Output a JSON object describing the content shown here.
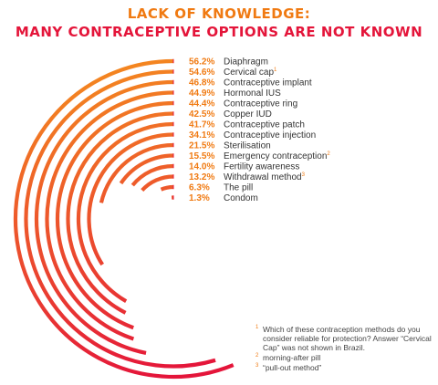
{
  "title": {
    "line1": "LACK OF KNOWLEDGE:",
    "line2": "MANY CONTRACEPTIVE OPTIONS ARE NOT KNOWN"
  },
  "colors": {
    "orange": "#f5901e",
    "red": "#e4153a",
    "title_orange": "#f07a12",
    "value_orange": "#f07a12",
    "label_text": "#333333"
  },
  "chart_data": {
    "type": "radial-bar",
    "unit": "%",
    "max": 100,
    "items": [
      {
        "label": "Diaphragm",
        "value": 56.2,
        "value_text": "56.2%",
        "footnote": ""
      },
      {
        "label": "Cervical cap",
        "value": 54.6,
        "value_text": "54.6%",
        "footnote": "1"
      },
      {
        "label": "Contraceptive implant",
        "value": 46.8,
        "value_text": "46.8%",
        "footnote": ""
      },
      {
        "label": "Hormonal IUS",
        "value": 44.9,
        "value_text": "44.9%",
        "footnote": ""
      },
      {
        "label": "Contraceptive ring",
        "value": 44.4,
        "value_text": "44.4%",
        "footnote": ""
      },
      {
        "label": "Copper IUD",
        "value": 42.5,
        "value_text": "42.5%",
        "footnote": ""
      },
      {
        "label": "Contraceptive patch",
        "value": 41.7,
        "value_text": "41.7%",
        "footnote": ""
      },
      {
        "label": "Contraceptive injection",
        "value": 34.1,
        "value_text": "34.1%",
        "footnote": ""
      },
      {
        "label": "Sterilisation",
        "value": 21.5,
        "value_text": "21.5%",
        "footnote": ""
      },
      {
        "label": "Emergency contraception",
        "value": 15.5,
        "value_text": "15.5%",
        "footnote": "2"
      },
      {
        "label": "Fertility awareness",
        "value": 14.0,
        "value_text": "14.0%",
        "footnote": ""
      },
      {
        "label": "Withdrawal method",
        "value": 13.2,
        "value_text": "13.2%",
        "footnote": "3"
      },
      {
        "label": "The pill",
        "value": 6.3,
        "value_text": "6.3%",
        "footnote": ""
      },
      {
        "label": "Condom",
        "value": 1.3,
        "value_text": "1.3%",
        "footnote": ""
      }
    ]
  },
  "footnotes": [
    {
      "mark": "1",
      "text": "Which of these contraception methods do you consider reliable for protection? Answer “Cervical Cap” was not shown in Brazil."
    },
    {
      "mark": "2",
      "text": "morning-after pill"
    },
    {
      "mark": "3",
      "text": "“pull-out method”"
    }
  ]
}
